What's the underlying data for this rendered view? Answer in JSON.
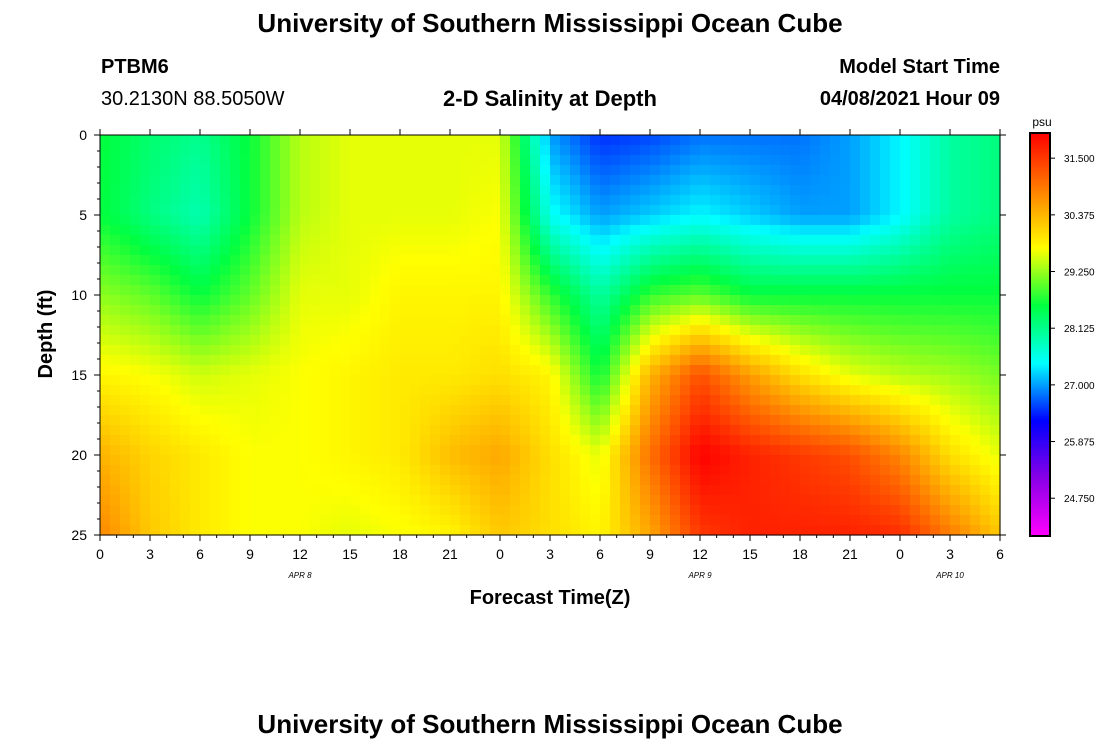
{
  "header": {
    "title": "University of Southern Mississippi Ocean Cube",
    "station": "PTBM6",
    "location": "30.2130N  88.5050W",
    "plot_title": "2-D Salinity at Depth",
    "model_label": "Model Start Time",
    "model_time": "04/08/2021 Hour 09"
  },
  "footer": {
    "title": "University of Southern Mississippi Ocean Cube"
  },
  "chart_data": {
    "type": "heatmap",
    "title": "2-D Salinity at Depth",
    "xlabel": "Forecast Time(Z)",
    "ylabel": "Depth (ft)",
    "xlim": [
      0,
      54
    ],
    "ylim": [
      0,
      25
    ],
    "x_tick_labels": [
      "0",
      "3",
      "6",
      "9",
      "12",
      "15",
      "18",
      "21",
      "0",
      "3",
      "6",
      "9",
      "12",
      "15",
      "18",
      "21",
      "0",
      "3",
      "6"
    ],
    "y_ticks": [
      0,
      5,
      10,
      15,
      20,
      25
    ],
    "date_labels": [
      {
        "text": "APR 8",
        "hour": 12
      },
      {
        "text": "APR 9",
        "hour": 36
      },
      {
        "text": "APR 10",
        "hour": 51
      }
    ],
    "colorbar": {
      "unit": "psu",
      "min": 24.0,
      "max": 32.0,
      "tick_labels": [
        "31.500",
        "30.375",
        "29.250",
        "28.125",
        "27.000",
        "25.875",
        "24.750"
      ],
      "colors": [
        "#ff00ff",
        "#8a00e6",
        "#0000ff",
        "#00ffff",
        "#00ff40",
        "#ffff00",
        "#ff8000",
        "#ff0000"
      ]
    },
    "salinity_grid": {
      "depths_ft": [
        0,
        5,
        10,
        15,
        20,
        25
      ],
      "hours": [
        0,
        3,
        6,
        9,
        12,
        15,
        18,
        21,
        24,
        27,
        30,
        33,
        36,
        39,
        42,
        45,
        48,
        51,
        54
      ],
      "values": [
        [
          28.6,
          28.3,
          28.1,
          28.6,
          29.4,
          29.6,
          29.6,
          29.6,
          29.6,
          27.0,
          26.5,
          26.6,
          26.8,
          26.8,
          26.8,
          27.0,
          27.4,
          28.0,
          28.2
        ],
        [
          28.6,
          28.2,
          27.9,
          28.6,
          29.4,
          29.6,
          29.6,
          29.6,
          29.7,
          27.5,
          27.0,
          27.2,
          27.4,
          27.2,
          27.0,
          27.0,
          27.4,
          28.0,
          28.2
        ],
        [
          29.2,
          29.0,
          28.6,
          29.0,
          29.6,
          29.6,
          29.8,
          29.8,
          29.8,
          28.8,
          28.0,
          28.8,
          29.0,
          28.6,
          28.6,
          28.6,
          28.6,
          28.6,
          28.6
        ],
        [
          29.8,
          29.7,
          29.5,
          29.6,
          29.7,
          29.8,
          29.9,
          29.9,
          30.0,
          29.8,
          28.6,
          30.4,
          31.3,
          30.6,
          30.0,
          29.6,
          29.4,
          29.3,
          29.1
        ],
        [
          30.4,
          30.1,
          29.9,
          29.7,
          29.7,
          29.8,
          29.9,
          30.3,
          30.5,
          30.0,
          29.6,
          31.0,
          32.0,
          31.7,
          31.5,
          31.3,
          30.8,
          30.0,
          29.6
        ],
        [
          30.8,
          30.2,
          29.9,
          29.7,
          29.7,
          29.6,
          29.7,
          29.8,
          30.2,
          30.0,
          29.8,
          30.5,
          31.5,
          31.7,
          31.7,
          31.7,
          31.6,
          30.9,
          30.2
        ]
      ]
    }
  }
}
